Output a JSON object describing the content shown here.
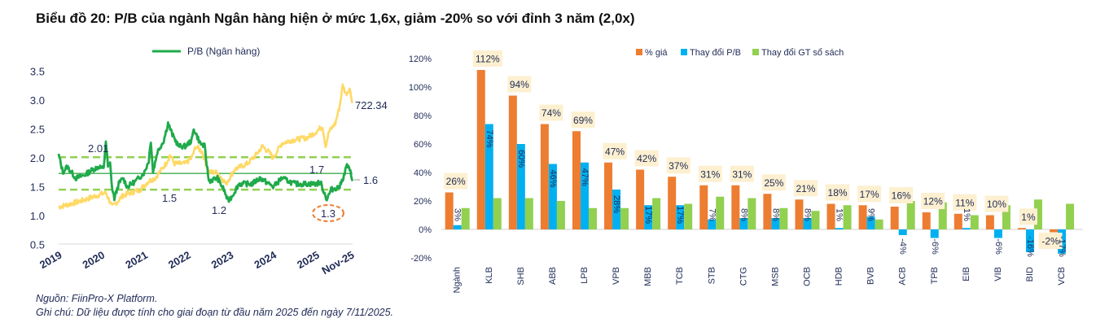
{
  "title": "Biểu đồ 20: P/B của ngành Ngân hàng hiện ở mức 1,6x, giảm -20% so với đỉnh 3 năm (2,0x)",
  "footer": {
    "source": "Nguồn: FiinPro-X Platform.",
    "note": "Ghi chú: Dữ liệu được tính cho giai đoạn từ đầu năm 2025 đến ngày 7/11/2025."
  },
  "chart_data": [
    {
      "type": "line",
      "legend": [
        "P/B (Ngân hàng)"
      ],
      "legend_position": "top",
      "yticks": [
        "3.5",
        "3.0",
        "2.5",
        "2.0",
        "1.5",
        "1.0",
        "0.5"
      ],
      "ylim": [
        0.5,
        3.5
      ],
      "xticks": [
        "2019",
        "2020",
        "2021",
        "2022",
        "2023",
        "2024",
        "2025",
        "Nov-25"
      ],
      "xlim": [
        "2019",
        "Nov-25"
      ],
      "grid": false,
      "colors": {
        "pb": "#1faa4b",
        "index": "#ffd966",
        "band": "#92d050",
        "mean": "#3cae4b",
        "highlight": "#ed7d31"
      },
      "series": [
        {
          "name": "P/B (Ngân hàng)",
          "x": [
            2019.0,
            2019.1,
            2019.2,
            2019.4,
            2019.6,
            2019.8,
            2019.95,
            2020.05,
            2020.1,
            2020.15,
            2020.2,
            2020.25,
            2020.3,
            2020.4,
            2020.5,
            2020.6,
            2020.8,
            2021.0,
            2021.1,
            2021.15,
            2021.2,
            2021.3,
            2021.45,
            2021.55,
            2021.65,
            2021.8,
            2021.95,
            2022.1,
            2022.15,
            2022.3,
            2022.4,
            2022.5,
            2022.7,
            2022.85,
            2022.95,
            2023.05,
            2023.2,
            2023.5,
            2023.7,
            2024.0,
            2024.2,
            2024.5,
            2024.8,
            2025.0,
            2025.1,
            2025.25,
            2025.35,
            2025.55,
            2025.65,
            2025.72,
            2025.8,
            2025.85
          ],
          "y": [
            2.05,
            1.75,
            1.85,
            1.65,
            1.7,
            1.8,
            1.85,
            1.8,
            2.3,
            1.85,
            1.9,
            1.45,
            1.3,
            1.55,
            1.65,
            1.5,
            1.6,
            1.75,
            1.95,
            2.3,
            1.75,
            2.1,
            2.3,
            2.6,
            2.4,
            2.2,
            2.2,
            2.3,
            2.5,
            2.25,
            2.2,
            1.6,
            1.65,
            1.45,
            1.25,
            1.35,
            1.55,
            1.55,
            1.65,
            1.5,
            1.65,
            1.55,
            1.55,
            1.55,
            1.58,
            1.28,
            1.45,
            1.5,
            1.7,
            1.88,
            1.75,
            1.6
          ]
        },
        {
          "end_label": "722.34",
          "x": [
            2019.0,
            2019.5,
            2019.9,
            2020.1,
            2020.25,
            2020.5,
            2020.9,
            2021.1,
            2021.25,
            2021.5,
            2021.6,
            2021.7,
            2021.95,
            2022.1,
            2022.2,
            2022.35,
            2022.5,
            2022.7,
            2022.9,
            2023.1,
            2023.4,
            2023.6,
            2023.75,
            2023.9,
            2024.0,
            2024.2,
            2024.4,
            2024.8,
            2025.0,
            2025.15,
            2025.22,
            2025.3,
            2025.45,
            2025.55,
            2025.62,
            2025.7,
            2025.78,
            2025.85
          ],
          "y": [
            1.15,
            1.25,
            1.35,
            1.4,
            1.15,
            1.35,
            1.45,
            1.6,
            1.65,
            1.9,
            2.05,
            1.9,
            1.9,
            2.0,
            2.2,
            2.1,
            1.75,
            1.75,
            1.55,
            1.8,
            1.9,
            2.05,
            2.2,
            2.1,
            2.0,
            2.25,
            2.3,
            2.35,
            2.45,
            2.55,
            2.2,
            2.45,
            2.6,
            2.9,
            3.25,
            3.1,
            3.2,
            2.95
          ]
        }
      ],
      "reference_lines": [
        {
          "value": 2.01,
          "style": "dashed",
          "label": "2.01"
        },
        {
          "value": 1.73,
          "style": "solid",
          "label": "1.7"
        },
        {
          "value": 1.45,
          "style": "dashed",
          "label": "1.5"
        }
      ],
      "annotations": [
        {
          "text": "1.2",
          "x": 2022.95,
          "y": 1.25
        },
        {
          "text": "1.3",
          "x": 2025.25,
          "y": 1.28,
          "highlighted": true
        },
        {
          "text": "1.6",
          "x": 2025.85,
          "y": 1.6
        }
      ]
    },
    {
      "type": "bar",
      "categories": [
        "Ngành",
        "KLB",
        "SHB",
        "ABB",
        "LPB",
        "VPB",
        "MBB",
        "TCB",
        "STB",
        "CTG",
        "MSB",
        "OCB",
        "HDB",
        "BVB",
        "ACB",
        "TPB",
        "EIB",
        "VIB",
        "BID",
        "VCB"
      ],
      "series": [
        {
          "name": "% giá",
          "color": "#ed7d31",
          "values": [
            26,
            112,
            94,
            74,
            69,
            47,
            42,
            37,
            31,
            31,
            25,
            21,
            18,
            17,
            16,
            12,
            11,
            10,
            1,
            -2
          ],
          "labels": [
            "26%",
            "112%",
            "94%",
            "74%",
            "69%",
            "47%",
            "42%",
            "37%",
            "31%",
            "31%",
            "25%",
            "21%",
            "18%",
            "17%",
            "16%",
            "12%",
            "11%",
            "10%",
            "1%",
            "-2%"
          ]
        },
        {
          "name": "Thay đổi P/B",
          "color": "#00b0f0",
          "values": [
            3,
            74,
            60,
            46,
            47,
            28,
            17,
            17,
            7,
            8,
            8,
            8,
            1,
            9,
            -4,
            -6,
            1,
            -6,
            -16,
            -17
          ],
          "labels": [
            "3%",
            "74%",
            "60%",
            "46%",
            "47%",
            "28%",
            "17%",
            "17%",
            "7%",
            "8%",
            "8%",
            "8%",
            "1%",
            "9%",
            "-4%",
            "-6%",
            "1%",
            "-6%",
            "-16%",
            "-17%"
          ]
        },
        {
          "name": "Thay đổi GT sổ sách",
          "color": "#92d050",
          "values": [
            15,
            22,
            22,
            20,
            15,
            15,
            22,
            18,
            23,
            22,
            15,
            13,
            17,
            7,
            20,
            19,
            10,
            17,
            21,
            18
          ]
        }
      ],
      "yticks": [
        "120%",
        "100%",
        "80%",
        "60%",
        "40%",
        "20%",
        "0%",
        "-20%"
      ],
      "ylim": [
        -20,
        120
      ],
      "legend_position": "top",
      "grid": false,
      "label_box_color": "#fdf0d0"
    }
  ]
}
